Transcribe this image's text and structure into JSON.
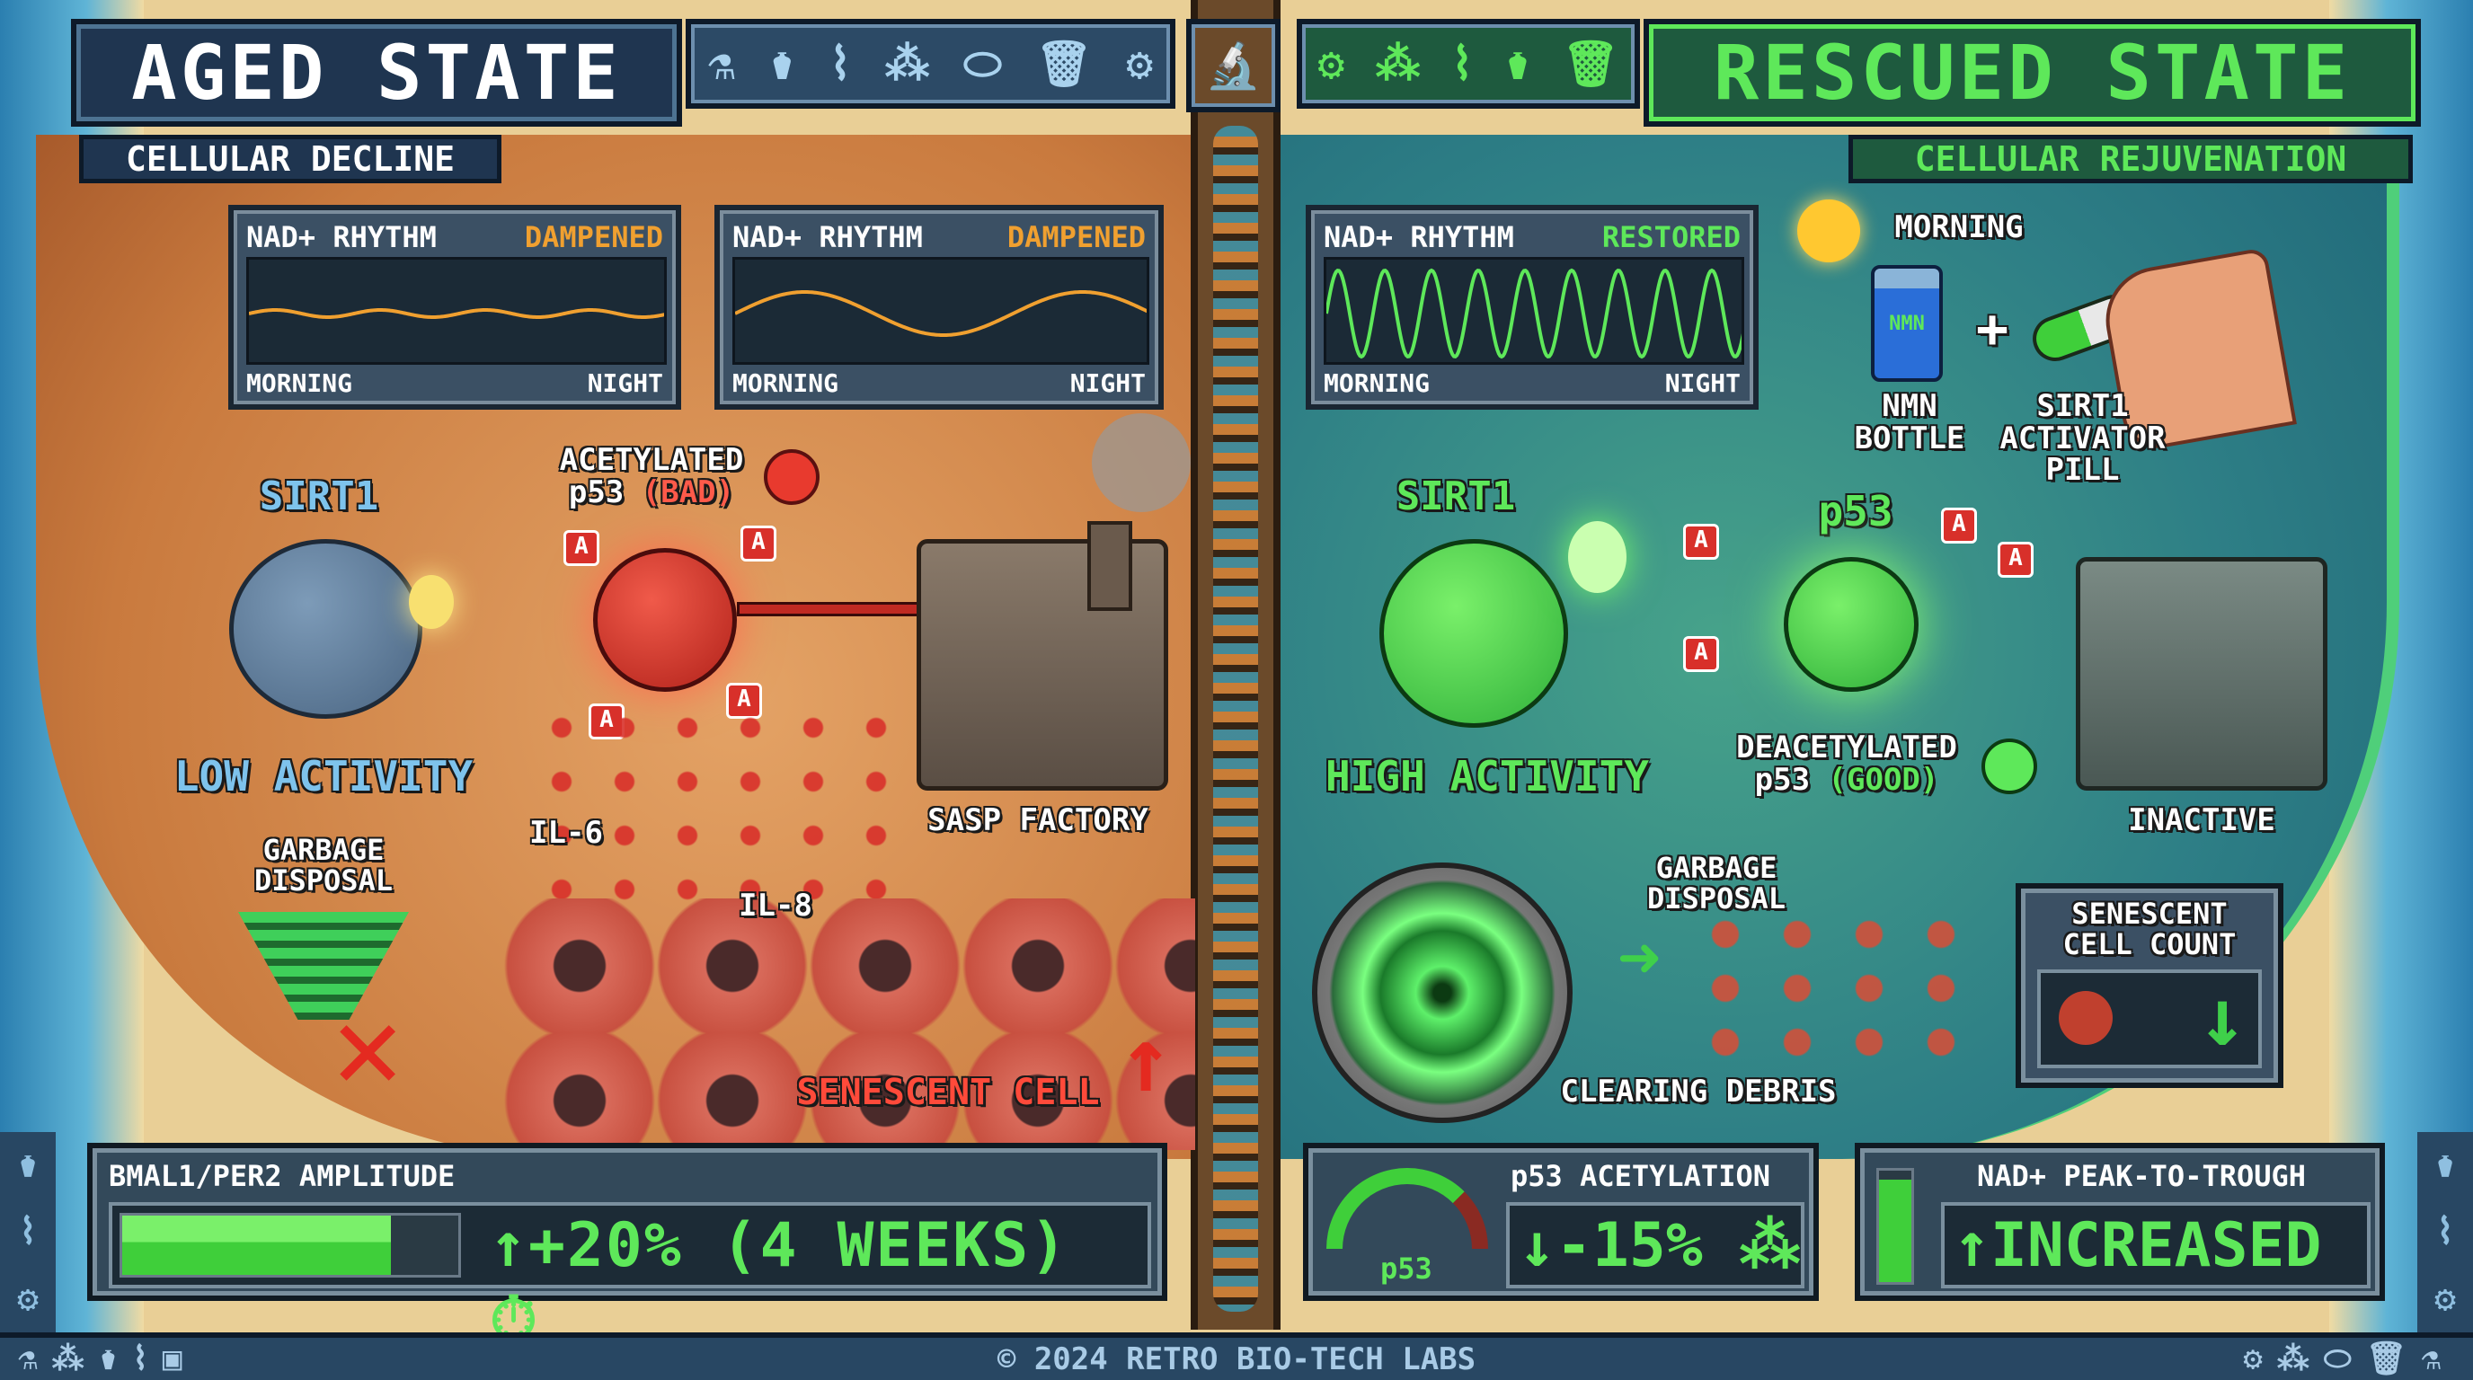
{
  "left": {
    "title": "AGED STATE",
    "subtitle": "CELLULAR DECLINE",
    "toolbar_icons": [
      "microscope-icon",
      "flask-icon",
      "dna-icon",
      "molecule-icon",
      "pill-icon",
      "trash-icon",
      "gear-icon"
    ],
    "charts": [
      {
        "label": "NAD+ RHYTHM",
        "status": "DAMPENED",
        "x_start": "MORNING",
        "x_end": "NIGHT"
      },
      {
        "label": "NAD+ RHYTHM",
        "status": "DAMPENED",
        "x_start": "MORNING",
        "x_end": "NIGHT"
      }
    ],
    "sirt1_label": "SIRT1",
    "sirt1_activity": "LOW ACTIVITY",
    "p53_label_line1": "ACETYLATED",
    "p53_label_line2": "p53",
    "p53_label_tag": "(BAD)",
    "acetyl_marker": "A",
    "garbage_line1": "GARBAGE",
    "garbage_line2": "DISPOSAL",
    "il6": "IL-6",
    "il8": "IL-8",
    "factory_label": "SASP FACTORY",
    "senescent_label": "SENESCENT CELL"
  },
  "center": {
    "icon": "microscope-icon"
  },
  "right": {
    "title": "RESCUED STATE",
    "subtitle": "CELLULAR REJUVENATION",
    "toolbar_icons": [
      "gear-icon",
      "molecule-icon",
      "dna-icon",
      "flask-icon",
      "trash-icon"
    ],
    "chart": {
      "label": "NAD+ RHYTHM",
      "status": "RESTORED",
      "x_start": "MORNING",
      "x_end": "NIGHT"
    },
    "morning": "MORNING",
    "nmn_bottle_text": "NMN",
    "nmn_line1": "NMN",
    "nmn_line2": "BOTTLE",
    "plus": "+",
    "pill_line1": "SIRT1",
    "pill_line2": "ACTIVATOR",
    "pill_line3": "PILL",
    "sirt1_label": "SIRT1",
    "sirt1_activity": "HIGH ACTIVITY",
    "p53_label": "p53",
    "deacetyl_line1": "DEACETYLATED",
    "deacetyl_line2": "p53",
    "deacetyl_tag": "(GOOD)",
    "acetyl_marker": "A",
    "factory_label": "INACTIVE",
    "garbage_line1": "GARBAGE",
    "garbage_line2": "DISPOSAL",
    "clearing_label": "CLEARING DEBRIS",
    "senescent_count_line1": "SENESCENT",
    "senescent_count_line2": "CELL COUNT"
  },
  "metrics": {
    "bmal": {
      "label": "BMAL1/PER2 AMPLITUDE",
      "value": "+20% (4 WEEKS)",
      "bar_fill_fraction": 0.8
    },
    "p53": {
      "label": "p53 ACETYLATION",
      "gauge_label": "p53",
      "value": "-15%"
    },
    "nad": {
      "label": "NAD+ PEAK-TO-TROUGH",
      "value": "INCREASED"
    }
  },
  "footer": {
    "text": "© 2024 RETRO BIO-TECH LABS"
  },
  "colors": {
    "good": "#5ee85a",
    "bad": "#e83a2e",
    "warn": "#f0a030",
    "panel": "#1f3550"
  }
}
